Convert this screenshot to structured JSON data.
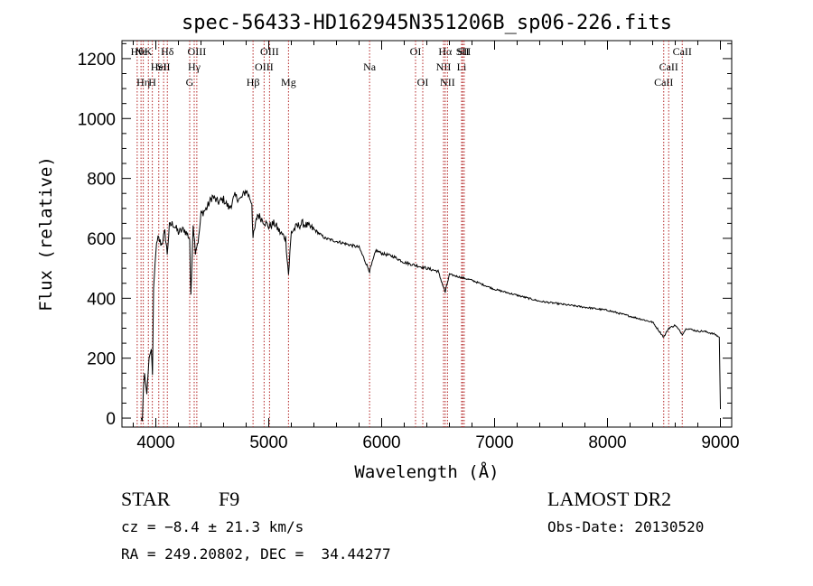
{
  "chart_data": {
    "type": "line",
    "title": "spec-56433-HD162945N351206B_sp06-226.fits",
    "xlabel": "Wavelength (Å)",
    "ylabel": "Flux (relative)",
    "xlim": [
      3700,
      9100
    ],
    "ylim": [
      -30,
      1260
    ],
    "x_ticks": [
      4000,
      5000,
      6000,
      7000,
      8000,
      9000
    ],
    "y_ticks": [
      0,
      200,
      400,
      600,
      800,
      1000,
      1200
    ],
    "grid": false,
    "line_color": "#000000",
    "marker_color": "#b22222",
    "series": [
      {
        "x": [
          3870,
          3880,
          3885,
          3890,
          3900,
          3920,
          3940,
          3960,
          3970,
          3980,
          4000,
          4020,
          4050,
          4080,
          4101,
          4120,
          4150,
          4200,
          4250,
          4300,
          4310,
          4330,
          4350,
          4380,
          4400,
          4450,
          4500,
          4550,
          4600,
          4650,
          4700,
          4750,
          4800,
          4850,
          4861,
          4900,
          4950,
          5000,
          5050,
          5100,
          5150,
          5175,
          5200,
          5250,
          5300,
          5350,
          5400,
          5500,
          5600,
          5700,
          5800,
          5893,
          5950,
          6000,
          6100,
          6200,
          6300,
          6400,
          6500,
          6563,
          6600,
          6700,
          6800,
          7000,
          7200,
          7400,
          7600,
          7800,
          8000,
          8200,
          8400,
          8498,
          8542,
          8600,
          8662,
          8700,
          8800,
          8850,
          8950,
          8990,
          9000
        ],
        "y": [
          0,
          -10,
          40,
          100,
          150,
          80,
          200,
          230,
          150,
          420,
          560,
          600,
          580,
          620,
          550,
          640,
          650,
          620,
          630,
          600,
          400,
          650,
          560,
          600,
          680,
          700,
          740,
          720,
          730,
          700,
          740,
          730,
          760,
          720,
          600,
          680,
          660,
          640,
          650,
          620,
          600,
          480,
          620,
          640,
          650,
          640,
          630,
          600,
          590,
          580,
          570,
          490,
          560,
          550,
          540,
          520,
          510,
          500,
          490,
          420,
          480,
          470,
          460,
          430,
          410,
          390,
          380,
          370,
          360,
          340,
          320,
          270,
          300,
          310,
          280,
          300,
          290,
          290,
          280,
          270,
          30
        ]
      }
    ],
    "line_markers": [
      {
        "wavelength": 3835,
        "label": "Hθ",
        "row": 0
      },
      {
        "wavelength": 3869,
        "label": "Ne",
        "row": 0
      },
      {
        "wavelength": 3889,
        "label": "Hη",
        "row": 2
      },
      {
        "wavelength": 3934,
        "label": "K",
        "row": 0
      },
      {
        "wavelength": 3969,
        "label": "H",
        "row": 2
      },
      {
        "wavelength": 4026,
        "label": "HeI",
        "row": 1
      },
      {
        "wavelength": 4069,
        "label": "SII",
        "row": 1
      },
      {
        "wavelength": 4102,
        "label": "Hδ",
        "row": 0
      },
      {
        "wavelength": 4300,
        "label": "G",
        "row": 2
      },
      {
        "wavelength": 4340,
        "label": "Hγ",
        "row": 1
      },
      {
        "wavelength": 4363,
        "label": "OIII",
        "row": 0
      },
      {
        "wavelength": 4861,
        "label": "Hβ",
        "row": 2
      },
      {
        "wavelength": 4959,
        "label": "OIII",
        "row": 1
      },
      {
        "wavelength": 5007,
        "label": "OIII",
        "row": 0
      },
      {
        "wavelength": 5175,
        "label": "Mg",
        "row": 2
      },
      {
        "wavelength": 5893,
        "label": "Na",
        "row": 1
      },
      {
        "wavelength": 6300,
        "label": "OI",
        "row": 0
      },
      {
        "wavelength": 6364,
        "label": "OI",
        "row": 2
      },
      {
        "wavelength": 6548,
        "label": "NII",
        "row": 1
      },
      {
        "wavelength": 6563,
        "label": "Hα",
        "row": 0
      },
      {
        "wavelength": 6583,
        "label": "NII",
        "row": 2
      },
      {
        "wavelength": 6708,
        "label": "Li",
        "row": 1
      },
      {
        "wavelength": 6717,
        "label": "SII",
        "row": 0
      },
      {
        "wavelength": 6731,
        "label": "SII",
        "row": 0
      },
      {
        "wavelength": 8498,
        "label": "CaII",
        "row": 2
      },
      {
        "wavelength": 8542,
        "label": "CaII",
        "row": 1
      },
      {
        "wavelength": 8662,
        "label": "CaII",
        "row": 0
      }
    ]
  },
  "info": {
    "class_label": "STAR",
    "subclass": "F9",
    "survey": "LAMOST DR2",
    "redshift": "cz = −8.4 ± 21.3 km/s",
    "obs_date": "Obs-Date: 20130520",
    "coords": "RA = 249.20802, DEC =  34.44277"
  }
}
